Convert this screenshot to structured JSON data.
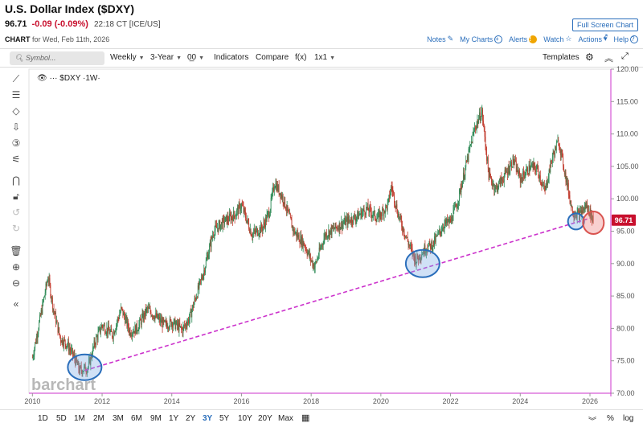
{
  "header": {
    "title": "U.S. Dollar Index ($DXY)",
    "last": "96.71",
    "change": "-0.09 (-0.09%)",
    "time": "22:18 CT [ICE/US]",
    "fullscreen": "Full Screen Chart",
    "chart_label": "CHART",
    "chart_date": "for Wed, Feb 11th, 2026",
    "links": {
      "notes": "Notes",
      "mycharts": "My Charts",
      "alerts": "Alerts",
      "watch": "Watch",
      "actions": "Actions",
      "help": "Help"
    }
  },
  "toolbar": {
    "search_placeholder": "Symbol...",
    "period": "Weekly",
    "range": "3-Year",
    "type_glyph": "0̲0",
    "indicators": "Indicators",
    "compare": "Compare",
    "fx": "f(x)",
    "layout": "1x1",
    "templates": "Templates"
  },
  "legend": {
    "symbol": "$DXY",
    "interval": "·1W·"
  },
  "price_tag": "96.71",
  "watermark": "barchart",
  "bottom": {
    "ranges": [
      "1D",
      "5D",
      "1M",
      "2M",
      "3M",
      "6M",
      "9M",
      "1Y",
      "2Y",
      "3Y",
      "5Y",
      "10Y",
      "20Y",
      "Max"
    ],
    "active": "3Y",
    "pct": "%",
    "log": "log"
  },
  "colors": {
    "up": "#2e8b57",
    "down": "#c0392b",
    "trendline": "#cc33cc",
    "circle_blue": "#2a6ebb",
    "circle_red": "#d9534f",
    "accent": "#2a6ebb"
  },
  "chart_data": {
    "type": "line",
    "title": "",
    "x_tick_labels": [
      "2010",
      "2012",
      "2014",
      "2016",
      "2018",
      "2020",
      "2022",
      "2024",
      "2026"
    ],
    "y_tick_labels": [
      "70.00",
      "75.00",
      "80.00",
      "85.00",
      "90.00",
      "95.00",
      "100.00",
      "105.00",
      "110.00",
      "115.00",
      "120.00"
    ],
    "ylim": [
      70,
      120
    ],
    "xlim": [
      2009.9,
      2026.6
    ],
    "series": [
      {
        "x": [
          2010.0,
          2010.2,
          2010.45,
          2010.6,
          2010.8,
          2011.0,
          2011.2,
          2011.35,
          2011.6,
          2011.8,
          2012.0,
          2012.3,
          2012.55,
          2012.8,
          2013.0,
          2013.3,
          2013.5,
          2013.8,
          2014.0,
          2014.3,
          2014.5,
          2014.7,
          2014.9,
          2015.2,
          2015.5,
          2015.8,
          2016.0,
          2016.3,
          2016.6,
          2016.8,
          2016.95,
          2017.2,
          2017.5,
          2017.8,
          2018.0,
          2018.1,
          2018.4,
          2018.7,
          2019.0,
          2019.3,
          2019.6,
          2019.9,
          2020.2,
          2020.3,
          2020.5,
          2020.8,
          2021.0,
          2021.3,
          2021.5,
          2021.8,
          2022.0,
          2022.2,
          2022.5,
          2022.7,
          2022.9,
          2023.1,
          2023.3,
          2023.6,
          2023.8,
          2024.0,
          2024.3,
          2024.5,
          2024.7,
          2024.9,
          2025.1,
          2025.3,
          2025.5,
          2025.7,
          2025.9,
          2026.1
        ],
        "y": [
          75.5,
          81.0,
          88.0,
          83.0,
          78.5,
          77.5,
          75.5,
          73.5,
          74.0,
          78.0,
          80.5,
          79.0,
          83.0,
          79.5,
          80.0,
          83.0,
          82.0,
          80.5,
          81.0,
          79.8,
          81.5,
          85.0,
          88.5,
          95.0,
          96.5,
          97.5,
          99.0,
          94.5,
          95.5,
          98.0,
          102.5,
          100.0,
          95.0,
          93.0,
          90.5,
          89.5,
          94.5,
          95.5,
          96.5,
          97.2,
          98.5,
          97.0,
          99.0,
          102.0,
          97.5,
          93.0,
          90.5,
          92.5,
          93.0,
          96.0,
          96.5,
          99.5,
          106.5,
          111.0,
          113.5,
          103.5,
          101.5,
          104.0,
          106.0,
          103.0,
          105.0,
          104.5,
          101.0,
          106.0,
          109.0,
          103.5,
          98.0,
          97.5,
          99.0,
          96.71
        ]
      }
    ],
    "trendline": {
      "from": [
        2011.5,
        73.5
      ],
      "to": [
        2026.0,
        97.0
      ]
    },
    "highlight_circles": [
      {
        "x": 2011.5,
        "y": 74.0,
        "style": "blue"
      },
      {
        "x": 2021.2,
        "y": 90.0,
        "style": "blue"
      },
      {
        "x": 2025.6,
        "y": 96.5,
        "style": "blue"
      },
      {
        "x": 2026.1,
        "y": 96.3,
        "style": "red"
      }
    ],
    "last_value": 96.71
  }
}
